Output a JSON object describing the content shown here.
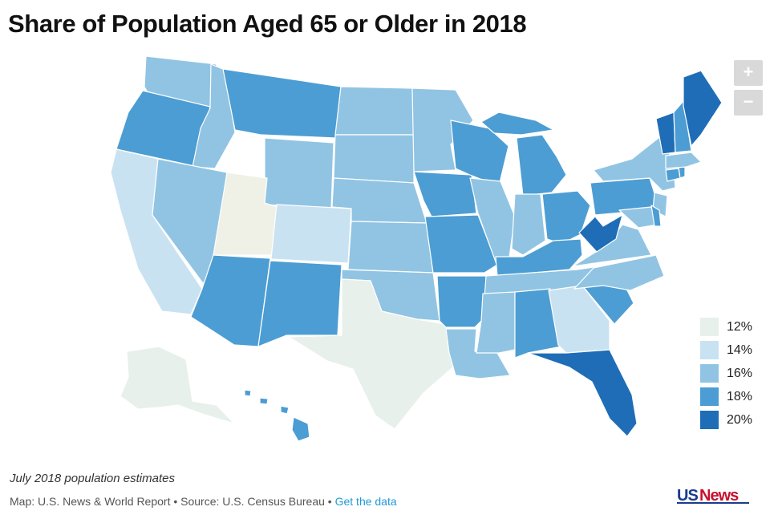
{
  "title": "Share of Population Aged 65 or Older in 2018",
  "zoom": {
    "in_label": "+",
    "out_label": "−"
  },
  "colors": {
    "c12": "#e8f0eb",
    "c14": "#c9e2f1",
    "c16": "#91c4e3",
    "c18": "#4c9dd3",
    "c20": "#1f6db7",
    "utah": "#f0f1e6"
  },
  "legend": [
    {
      "label": "12%",
      "color": "#e8f0eb"
    },
    {
      "label": "14%",
      "color": "#c9e2f1"
    },
    {
      "label": "16%",
      "color": "#91c4e3"
    },
    {
      "label": "18%",
      "color": "#4c9dd3"
    },
    {
      "label": "20%",
      "color": "#1f6db7"
    }
  ],
  "note": "July 2018 population estimates",
  "credit": {
    "text": "Map: U.S. News & World Report • Source: U.S. Census Bureau • ",
    "link": "Get the data"
  },
  "logo": {
    "text": "USNews"
  }
}
